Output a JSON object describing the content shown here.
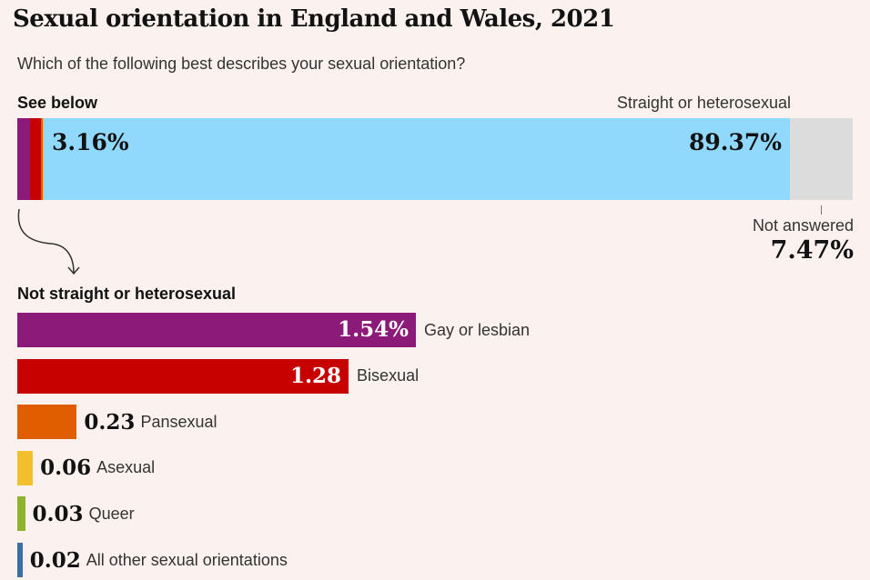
{
  "header": {
    "title": "Sexual orientation in England and Wales, 2021",
    "subtitle": "Which of the following best describes your sexual orientation?"
  },
  "chart_data": [
    {
      "type": "bar",
      "stacked": true,
      "orientation": "horizontal",
      "labels": {
        "see_below": "See below",
        "straight": "Straight or heterosexual",
        "not_answered": "Not answered"
      },
      "printed_values": {
        "not_straight": "3.16%",
        "straight": "89.37%",
        "not_answered": "7.47%"
      },
      "segments": [
        {
          "category": "Gay or lesbian",
          "value": 1.54,
          "color": "#8b1a78"
        },
        {
          "category": "Bisexual",
          "value": 1.28,
          "color": "#c70000"
        },
        {
          "category": "Pansexual",
          "value": 0.23,
          "color": "#e05e00"
        },
        {
          "category": "Asexual",
          "value": 0.06,
          "color": "#f3c02d"
        },
        {
          "category": "Queer",
          "value": 0.03,
          "color": "#8fb22f"
        },
        {
          "category": "All other sexual orientations",
          "value": 0.02,
          "color": "#3a6ea5"
        },
        {
          "category": "Straight or heterosexual",
          "value": 89.37,
          "color": "#90d8fc"
        },
        {
          "category": "Not answered",
          "value": 7.47,
          "color": "#dcdcdc"
        }
      ],
      "unit": "%"
    },
    {
      "type": "bar",
      "orientation": "horizontal",
      "title": "Not straight or heterosexual",
      "unit": "%",
      "categories": [
        "Gay or lesbian",
        "Bisexual",
        "Pansexual",
        "Asexual",
        "Queer",
        "All other sexual orientations"
      ],
      "values": [
        1.54,
        1.28,
        0.23,
        0.06,
        0.03,
        0.02
      ],
      "value_labels": [
        "1.54%",
        "1.28",
        "0.23",
        "0.06",
        "0.03",
        "0.02"
      ],
      "colors": [
        "#8b1a78",
        "#c70000",
        "#e05e00",
        "#f3c02d",
        "#8fb22f",
        "#3a6ea5"
      ]
    }
  ]
}
